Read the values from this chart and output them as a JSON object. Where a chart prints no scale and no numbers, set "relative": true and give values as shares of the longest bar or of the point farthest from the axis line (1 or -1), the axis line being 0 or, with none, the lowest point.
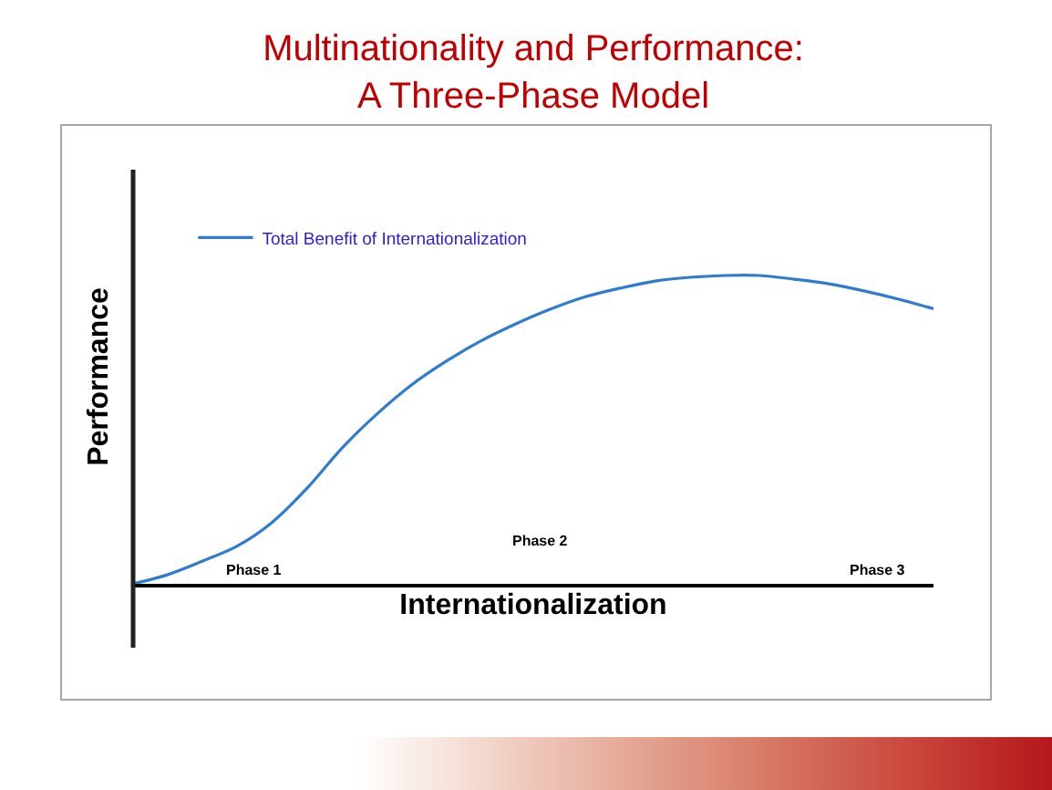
{
  "chart_data": {
    "type": "line",
    "title": "Multinationality and Performance:\nA Three-Phase Model",
    "xlabel": "Internationalization",
    "ylabel": "Performance",
    "categories": [
      null,
      null,
      null,
      null,
      null,
      null,
      null,
      null,
      null,
      null,
      null,
      null,
      null,
      null,
      null,
      null,
      null,
      null,
      null,
      null,
      null,
      null,
      null,
      null
    ],
    "relative": true,
    "series": [
      {
        "name": "Total Benefit of Internationalization",
        "color": "#2e7bcf",
        "values": [
          0,
          0.03,
          0.074,
          0.123,
          0.2,
          0.31,
          0.44,
          0.55,
          0.645,
          0.722,
          0.788,
          0.843,
          0.891,
          0.931,
          0.959,
          0.982,
          0.994,
          1,
          1,
          0.988,
          0.973,
          0.95,
          0.923,
          0.892
        ]
      }
    ],
    "annotations": [
      "Phase 1",
      "Phase 2",
      "Phase 3"
    ],
    "legend": "top left",
    "marker": "none",
    "line_style": "solid"
  }
}
